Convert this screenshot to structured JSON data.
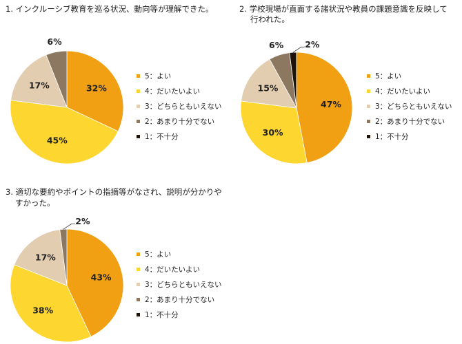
{
  "colors": {
    "5": "#f0a012",
    "4": "#fed630",
    "3": "#e2cdb0",
    "2": "#8c7860",
    "1": "#1e1308"
  },
  "chart_data": [
    {
      "type": "pie",
      "title": "1. インクルーシブ教育を巡る状況、動向等が理解できた。",
      "title_lines": [
        "1. インクルーシブ教育を巡る状況、動向等が理解できた。"
      ],
      "categories": [
        "5：よい",
        "4：だいたいよい",
        "3：どちらともいえない",
        "2：あまり十分でない",
        "1：不十分"
      ],
      "values": [
        32,
        45,
        17,
        6,
        0
      ],
      "labels": [
        "32%",
        "45%",
        "17%",
        "6%",
        ""
      ],
      "legend_position": "right"
    },
    {
      "type": "pie",
      "title": "2. 学校現場が直面する諸状況や教員の課題意識を反映して行われた。",
      "title_lines": [
        "2. 学校現場が直面する諸状況や教員の課題意識を反映して",
        "行われた。"
      ],
      "categories": [
        "5：よい",
        "4：だいたいよい",
        "3：どちらともいえない",
        "2：あまり十分でない",
        "1：不十分"
      ],
      "values": [
        47,
        30,
        15,
        6,
        2
      ],
      "labels": [
        "47%",
        "30%",
        "15%",
        "6%",
        "2%"
      ],
      "legend_position": "right"
    },
    {
      "type": "pie",
      "title": "3. 適切な要約やポイントの指摘等がなされ、説明が分かりやすかった。",
      "title_lines": [
        "3. 適切な要約やポイントの指摘等がなされ、説明が分かりや",
        "すかった。"
      ],
      "categories": [
        "5：よい",
        "4：だいたいよい",
        "3：どちらともいえない",
        "2：あまり十分でない",
        "1：不十分"
      ],
      "values": [
        43,
        38,
        17,
        2,
        0
      ],
      "labels": [
        "43%",
        "38%",
        "17%",
        "2%",
        ""
      ],
      "legend_position": "right"
    }
  ]
}
